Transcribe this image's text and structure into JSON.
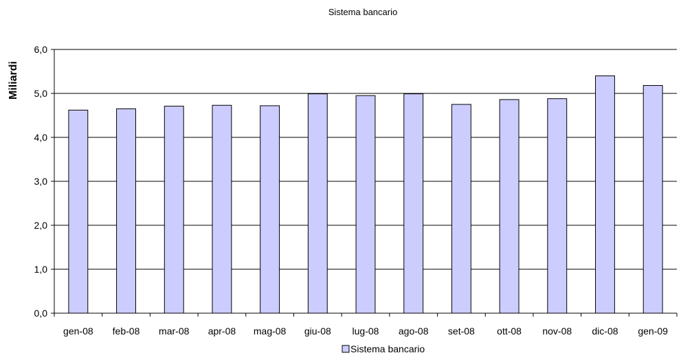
{
  "chart_data": {
    "type": "bar",
    "title": "Sistema bancario",
    "xlabel": "",
    "ylabel": "Miliardi",
    "categories": [
      "gen-08",
      "feb-08",
      "mar-08",
      "apr-08",
      "mag-08",
      "giu-08",
      "lug-08",
      "ago-08",
      "set-08",
      "ott-08",
      "nov-08",
      "dic-08",
      "gen-09"
    ],
    "series": [
      {
        "name": "Sistema bancario",
        "values": [
          4.62,
          4.65,
          4.71,
          4.73,
          4.72,
          4.99,
          4.95,
          4.99,
          4.75,
          4.86,
          4.88,
          5.4,
          5.18
        ],
        "color": "#ccccff"
      }
    ],
    "ylim": [
      0,
      6
    ],
    "y_ticks": [
      "0,0",
      "1,0",
      "2,0",
      "3,0",
      "4,0",
      "5,0",
      "6,0"
    ],
    "grid": "horizontal",
    "legend_position": "bottom"
  }
}
